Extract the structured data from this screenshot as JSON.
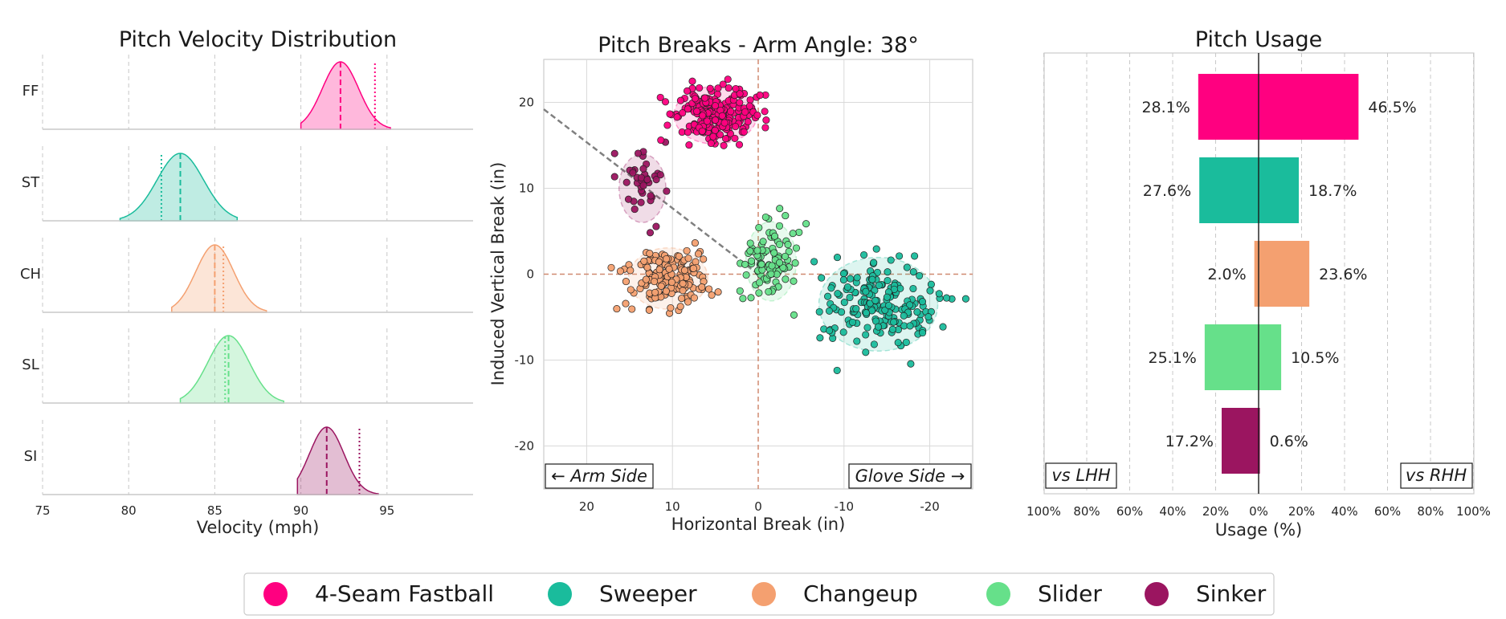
{
  "colors": {
    "FF": "#ff0080",
    "ST": "#1abc9c",
    "CH": "#f4a070",
    "SL": "#66e08a",
    "SI": "#9b1560"
  },
  "chart_data": [
    {
      "type": "area",
      "title": "Pitch Velocity Distribution",
      "xlabel": "Velocity (mph)",
      "xlim": [
        75,
        100
      ],
      "xticks": [
        75,
        80,
        85,
        90,
        95
      ],
      "grid": "vertical-dashed",
      "series": [
        {
          "code": "FF",
          "name": "FF",
          "mean": 92.3,
          "sd": 1.05,
          "range": [
            90.0,
            95.2
          ],
          "marker": 94.3
        },
        {
          "code": "ST",
          "name": "ST",
          "mean": 83.0,
          "sd": 1.35,
          "range": [
            79.5,
            86.3
          ],
          "marker": 81.9
        },
        {
          "code": "CH",
          "name": "CH",
          "mean": 85.0,
          "sd": 1.1,
          "range": [
            82.5,
            88.0
          ],
          "marker": 85.5,
          "mean_marker": 85.3
        },
        {
          "code": "SL",
          "name": "SL",
          "mean": 85.8,
          "sd": 1.2,
          "range": [
            83.0,
            89.0
          ],
          "marker": 85.6
        },
        {
          "code": "SI",
          "name": "SI",
          "mean": 91.5,
          "sd": 1.0,
          "range": [
            89.8,
            94.5
          ],
          "marker": 93.4
        }
      ]
    },
    {
      "type": "scatter",
      "title": "Pitch Breaks - Arm Angle: 38°",
      "xlabel": "Horizontal Break (in)",
      "ylabel": "Induced Vertical Break (in)",
      "xlim": [
        25,
        -25
      ],
      "ylim": [
        -25,
        25
      ],
      "xticks": [
        20,
        10,
        0,
        -10,
        -20
      ],
      "yticks": [
        20,
        10,
        0,
        -10,
        -20
      ],
      "grid": true,
      "arm_angle_line": {
        "from": [
          25,
          19.2
        ],
        "to": [
          0,
          0
        ]
      },
      "annotations": {
        "left": "← Arm Side",
        "right": "Glove Side →"
      },
      "series": [
        {
          "code": "FF",
          "name": "4-Seam Fastball",
          "center": [
            5,
            18.5
          ],
          "spread": [
            2.3,
            1.6
          ],
          "n": 230
        },
        {
          "code": "ST",
          "name": "Sweeper",
          "center": [
            -14,
            -3.5
          ],
          "spread": [
            3.3,
            2.6
          ],
          "n": 190
        },
        {
          "code": "CH",
          "name": "Changeup",
          "center": [
            10.5,
            -0.5
          ],
          "spread": [
            2.2,
            1.7
          ],
          "n": 160
        },
        {
          "code": "SL",
          "name": "Slider",
          "center": [
            -1.5,
            1.5
          ],
          "spread": [
            1.4,
            2.2
          ],
          "n": 95
        },
        {
          "code": "SI",
          "name": "Sinker",
          "center": [
            13.5,
            10
          ],
          "spread": [
            1.3,
            1.9
          ],
          "n": 40
        }
      ]
    },
    {
      "type": "bar",
      "orientation": "horizontal",
      "title": "Pitch Usage",
      "xlabel": "Usage (%)",
      "xticks": [
        "100%",
        "80%",
        "60%",
        "40%",
        "20%",
        "0%",
        "20%",
        "40%",
        "60%",
        "80%",
        "100%"
      ],
      "xlim": [
        -100,
        100
      ],
      "annotations": {
        "left": "vs LHH",
        "right": "vs RHH"
      },
      "categories": [
        "FF",
        "ST",
        "CH",
        "SL",
        "SI"
      ],
      "series": [
        {
          "name": "vs LHH",
          "values": [
            28.1,
            27.6,
            2.0,
            25.1,
            17.2
          ],
          "labels": [
            "28.1%",
            "27.6%",
            "2.0%",
            "25.1%",
            "17.2%"
          ]
        },
        {
          "name": "vs RHH",
          "values": [
            46.5,
            18.7,
            23.6,
            10.5,
            0.6
          ],
          "labels": [
            "46.5%",
            "18.7%",
            "23.6%",
            "10.5%",
            "0.6%"
          ]
        }
      ]
    }
  ],
  "legend": {
    "placement": "bottom-center",
    "items": [
      {
        "code": "FF",
        "label": "4-Seam Fastball"
      },
      {
        "code": "ST",
        "label": "Sweeper"
      },
      {
        "code": "CH",
        "label": "Changeup"
      },
      {
        "code": "SL",
        "label": "Slider"
      },
      {
        "code": "SI",
        "label": "Sinker"
      }
    ]
  }
}
